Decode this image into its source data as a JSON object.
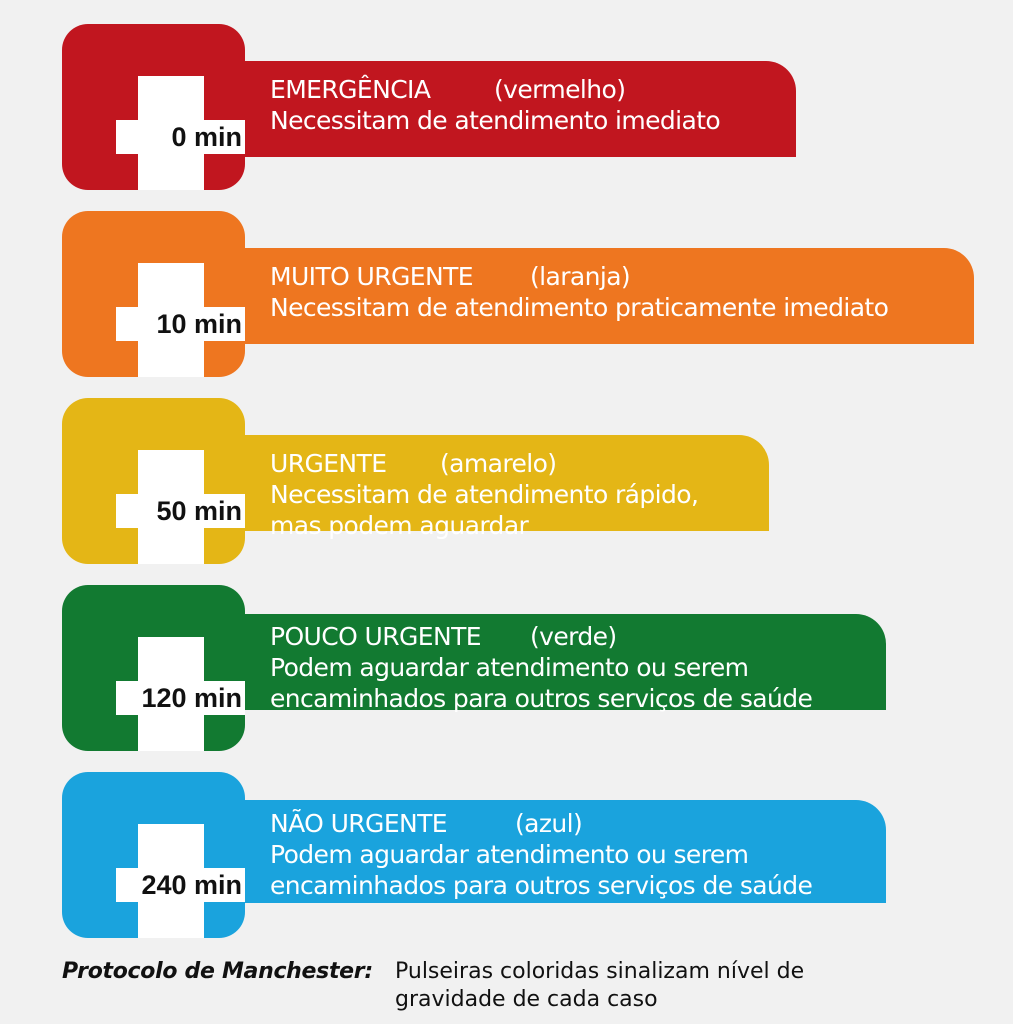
{
  "levels": [
    {
      "time": "0 min",
      "category": "EMERGÊNCIA",
      "color_name": "(vermelho)",
      "description_lines": [
        "Necessitam de atendimento imediato"
      ],
      "color": "#c1161f"
    },
    {
      "time": "10 min",
      "category": "MUITO URGENTE",
      "color_name": "(laranja)",
      "description_lines": [
        "Necessitam de atendimento praticamente imediato"
      ],
      "color": "#ee7620"
    },
    {
      "time": "50 min",
      "category": "URGENTE",
      "color_name": "(amarelo)",
      "description_lines": [
        "Necessitam de atendimento rápido,",
        "mas podem aguardar"
      ],
      "color": "#e4b616"
    },
    {
      "time": "120 min",
      "category": "POUCO URGENTE",
      "color_name": "(verde)",
      "description_lines": [
        "Podem aguardar atendimento ou serem",
        "encaminhados para outros serviços de saúde"
      ],
      "color": "#127a31"
    },
    {
      "time": "240 min",
      "category": "NÃO URGENTE",
      "color_name": "(azul)",
      "description_lines": [
        "Podem aguardar atendimento ou serem",
        "encaminhados para outros serviços de saúde"
      ],
      "color": "#1aa3dd"
    }
  ],
  "footer": {
    "label": "Protocolo de Manchester:",
    "text": "Pulseiras coloridas sinalizam nível de gravidade de cada caso"
  }
}
